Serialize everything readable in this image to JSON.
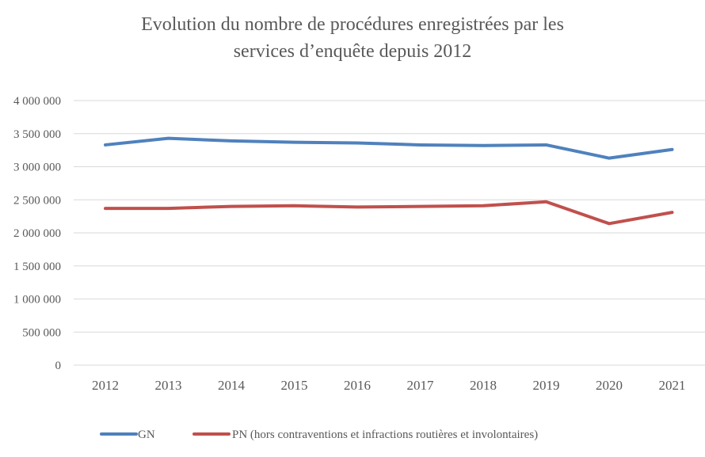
{
  "chart_data": {
    "type": "line",
    "title_lines": [
      "Evolution du nombre de procédures enregistrées par les",
      "services d’enquête depuis 2012"
    ],
    "title": "Evolution du nombre de procédures enregistrées par les services d’enquête depuis 2012",
    "xlabel": "",
    "ylabel": "",
    "categories": [
      "2012",
      "2013",
      "2014",
      "2015",
      "2016",
      "2017",
      "2018",
      "2019",
      "2020",
      "2021"
    ],
    "ylim": [
      0,
      4000000
    ],
    "yticks": [
      0,
      500000,
      1000000,
      1500000,
      2000000,
      2500000,
      3000000,
      3500000,
      4000000
    ],
    "ytick_labels": [
      "0",
      "500 000",
      "1 000 000",
      "1 500 000",
      "2 000 000",
      "2 500 000",
      "3 000 000",
      "3 500 000",
      "4 000 000"
    ],
    "grid": true,
    "legend_position": "bottom",
    "series": [
      {
        "name": "GN",
        "color": "#4F81BD",
        "values": [
          3330000,
          3430000,
          3390000,
          3370000,
          3360000,
          3330000,
          3320000,
          3330000,
          3130000,
          3260000
        ]
      },
      {
        "name": "PN (hors contraventions et infractions routières et involontaires)",
        "color": "#C0504D",
        "values": [
          2370000,
          2370000,
          2400000,
          2410000,
          2390000,
          2400000,
          2410000,
          2470000,
          2140000,
          2310000
        ]
      }
    ],
    "gridline_color": "#D9D9D9"
  }
}
